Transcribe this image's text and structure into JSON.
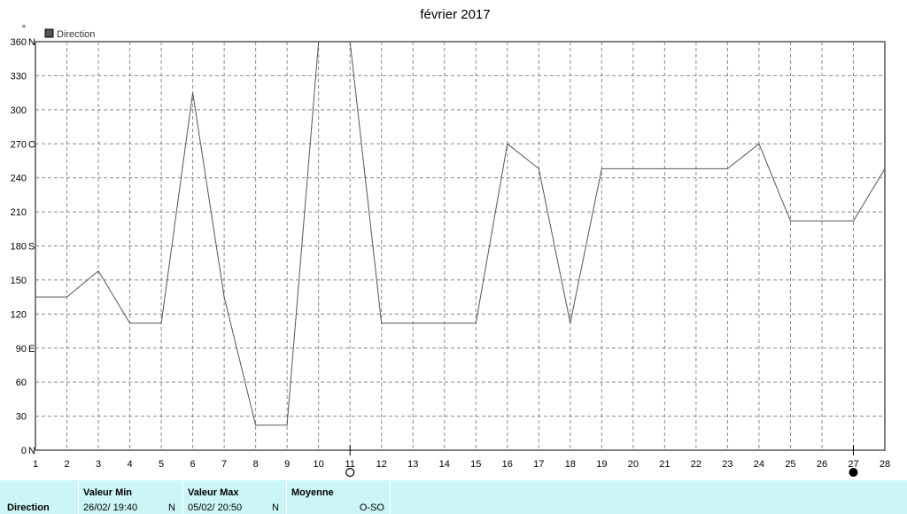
{
  "chart_data": {
    "type": "line",
    "title": "février 2017",
    "y_unit_symbol": "°",
    "legend": {
      "label": "Direction",
      "color": "#555555",
      "placement": "top-left"
    },
    "x_ticks": [
      "1",
      "2",
      "3",
      "4",
      "5",
      "6",
      "7",
      "8",
      "9",
      "10",
      "11",
      "12",
      "13",
      "14",
      "15",
      "16",
      "17",
      "18",
      "19",
      "20",
      "21",
      "22",
      "23",
      "24",
      "25",
      "26",
      "27",
      "28"
    ],
    "xlim": [
      1,
      28
    ],
    "ylim": [
      0,
      360
    ],
    "y_ticks": [
      {
        "value": 360,
        "label": "360",
        "cardinal": "N"
      },
      {
        "value": 330,
        "label": "330",
        "cardinal": ""
      },
      {
        "value": 300,
        "label": "300",
        "cardinal": ""
      },
      {
        "value": 270,
        "label": "270",
        "cardinal": "O"
      },
      {
        "value": 240,
        "label": "240",
        "cardinal": ""
      },
      {
        "value": 210,
        "label": "210",
        "cardinal": ""
      },
      {
        "value": 180,
        "label": "180",
        "cardinal": "S"
      },
      {
        "value": 150,
        "label": "150",
        "cardinal": ""
      },
      {
        "value": 120,
        "label": "120",
        "cardinal": ""
      },
      {
        "value": 90,
        "label": "90",
        "cardinal": "E"
      },
      {
        "value": 60,
        "label": "60",
        "cardinal": ""
      },
      {
        "value": 30,
        "label": "30",
        "cardinal": ""
      },
      {
        "value": 0,
        "label": "0",
        "cardinal": "N"
      }
    ],
    "grid": true,
    "series": [
      {
        "name": "Direction",
        "color": "#555555",
        "points": [
          [
            1,
            135
          ],
          [
            2,
            135
          ],
          [
            3,
            158
          ],
          [
            4,
            112
          ],
          [
            5,
            112
          ],
          [
            6,
            315
          ],
          [
            7,
            135
          ],
          [
            8,
            22
          ],
          [
            9,
            22
          ],
          [
            10,
            360
          ],
          [
            11,
            360
          ],
          [
            12,
            112
          ],
          [
            13,
            112
          ],
          [
            14,
            112
          ],
          [
            15,
            112
          ],
          [
            16,
            270
          ],
          [
            17,
            248
          ],
          [
            18,
            112
          ],
          [
            19,
            248
          ],
          [
            20,
            248
          ],
          [
            21,
            248
          ],
          [
            22,
            248
          ],
          [
            23,
            248
          ],
          [
            24,
            270
          ],
          [
            25,
            202
          ],
          [
            26,
            202
          ],
          [
            27,
            202
          ],
          [
            28,
            248
          ]
        ]
      }
    ],
    "moon_markers": [
      {
        "day": 11,
        "phase": "full-moon"
      },
      {
        "day": 27,
        "phase": "new-moon"
      }
    ]
  },
  "stats": {
    "row_label": "Direction",
    "min": {
      "header": "Valeur Min",
      "date": "26/02/  19:40",
      "dir": "N"
    },
    "max": {
      "header": "Valeur Max",
      "date": "05/02/  20:50",
      "dir": "N"
    },
    "avg": {
      "header": "Moyenne",
      "value": "O-SO"
    }
  }
}
